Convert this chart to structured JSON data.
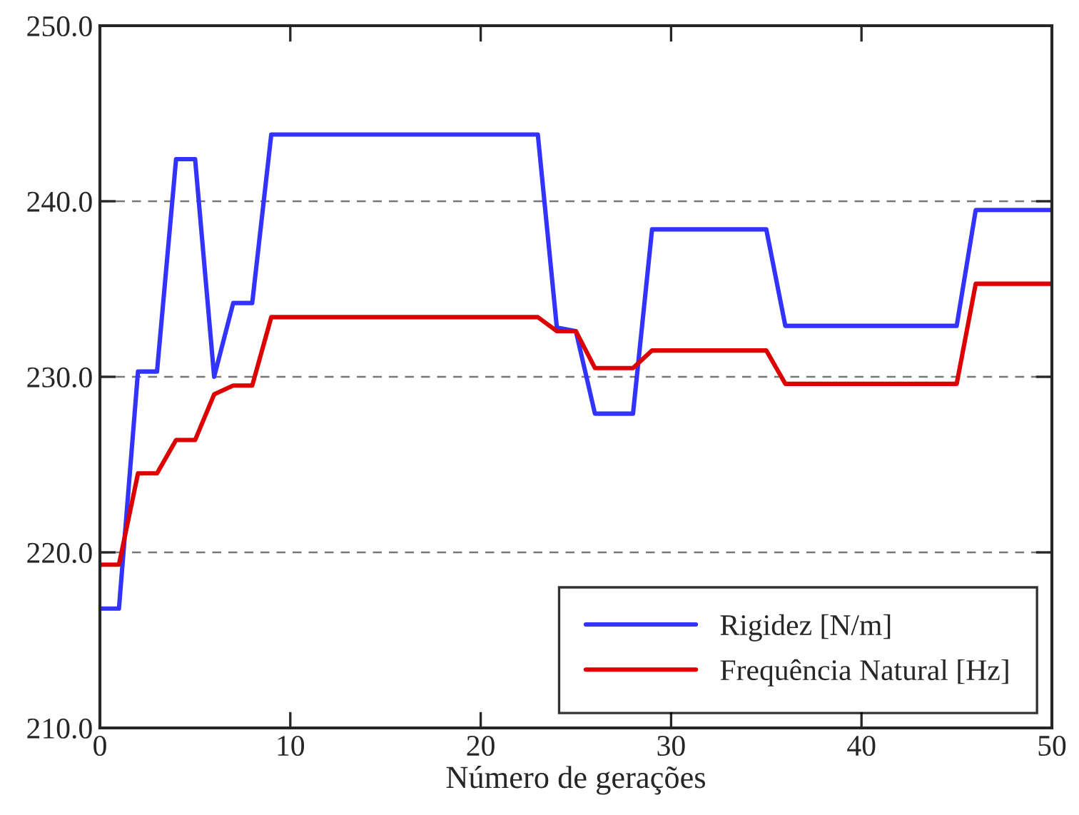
{
  "chart_data": {
    "type": "line",
    "xlabel": "Número de gerações",
    "x": [
      0,
      1,
      2,
      3,
      4,
      5,
      6,
      7,
      8,
      9,
      23,
      24,
      25,
      26,
      28,
      29,
      35,
      36,
      45,
      46,
      50
    ],
    "series": [
      {
        "name": "Rigidez [N/m]",
        "color": "#3333ff",
        "values": [
          216.8,
          216.8,
          230.3,
          230.3,
          242.4,
          242.4,
          230.0,
          234.2,
          234.2,
          243.8,
          243.8,
          232.8,
          232.6,
          227.9,
          227.9,
          238.4,
          238.4,
          232.9,
          232.9,
          239.5,
          239.5
        ]
      },
      {
        "name": "Frequência Natural [Hz]",
        "color": "#dd0000",
        "values": [
          219.3,
          219.3,
          224.5,
          224.5,
          226.4,
          226.4,
          229.0,
          229.5,
          229.5,
          233.4,
          233.4,
          232.6,
          232.6,
          230.5,
          230.5,
          231.5,
          231.5,
          229.6,
          229.6,
          235.3,
          235.3
        ]
      }
    ],
    "xlim": [
      0,
      50
    ],
    "xticks": [
      0,
      10,
      20,
      30,
      40,
      50
    ],
    "ylim": [
      210,
      250
    ],
    "yticks": [
      {
        "value": 210,
        "label": "210.0"
      },
      {
        "value": 220,
        "label": "220.0"
      },
      {
        "value": 230,
        "label": "230.0"
      },
      {
        "value": 240,
        "label": "240.0"
      },
      {
        "value": 250,
        "label": "250.0"
      }
    ],
    "grid": "y",
    "legend": "bottom right",
    "marker": "none",
    "line_style": "solid"
  }
}
